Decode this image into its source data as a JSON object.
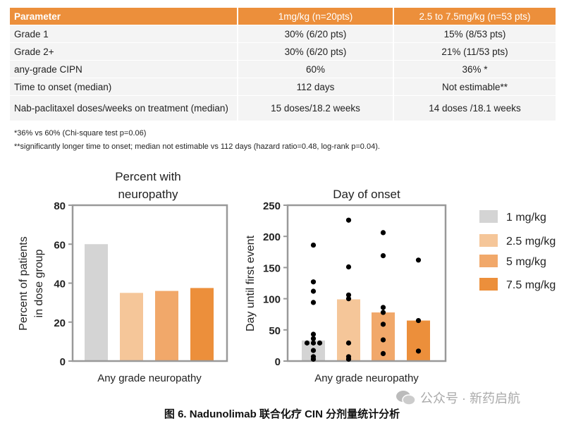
{
  "table": {
    "headers": [
      "Parameter",
      "1mg/kg (n=20pts)",
      "2.5 to 7.5mg/kg (n=53 pts)"
    ],
    "rows": [
      [
        "Grade 1",
        "30% (6/20 pts)",
        "15% (8/53 pts)"
      ],
      [
        "Grade 2+",
        "30% (6/20 pts)",
        "21% (11/53 pts)"
      ],
      [
        "any-grade CIPN",
        "60%",
        "36% *"
      ],
      [
        "Time to onset (median)",
        "112 days",
        "Not estimable**"
      ],
      [
        "Nab-paclitaxel doses/weeks on treatment (median)",
        "15 doses/18.2 weeks",
        "14 doses /18.1 weeks"
      ]
    ],
    "header_color": "#ec8f3b"
  },
  "footnotes": [
    "*36% vs 60% (Chi-square test p=0.06)",
    "**significantly longer time to onset; median not estimable vs 112 days (hazard ratio=0.48, log-rank p=0.04)."
  ],
  "chart_data": [
    {
      "type": "bar",
      "title": "Percent with neuropathy",
      "title_lines": [
        "Percent with",
        "neuropathy"
      ],
      "xlabel": "Any grade neuropathy",
      "ylabel_lines": [
        "Percent of patients",
        "in dose group"
      ],
      "ylim": [
        0,
        80
      ],
      "yticks": [
        "0",
        "20",
        "40",
        "60",
        "80"
      ],
      "categories": [
        "1 mg/kg",
        "2.5 mg/kg",
        "5 mg/kg",
        "7.5 mg/kg"
      ],
      "values": [
        60,
        35,
        36,
        37.5
      ]
    },
    {
      "type": "bar+scatter",
      "title": "Day of onset",
      "xlabel": "Any grade neuropathy",
      "ylabel": "Day until first event",
      "ylim": [
        0,
        250
      ],
      "yticks": [
        "0",
        "50",
        "100",
        "150",
        "200",
        "250"
      ],
      "categories": [
        "1 mg/kg",
        "2.5 mg/kg",
        "5 mg/kg",
        "7.5 mg/kg"
      ],
      "values": [
        33,
        99,
        78,
        65
      ],
      "points": [
        [
          186,
          127,
          112,
          94,
          43,
          36,
          29,
          29,
          29,
          17,
          7,
          3
        ],
        [
          226,
          151,
          106,
          100,
          29,
          7,
          3
        ],
        [
          206,
          169,
          86,
          78,
          59,
          34,
          12
        ],
        [
          162,
          65,
          16
        ]
      ]
    }
  ],
  "legend": [
    {
      "label": "1 mg/kg",
      "color": "#d4d4d4"
    },
    {
      "label": "2.5 mg/kg",
      "color": "#f5c699"
    },
    {
      "label": "5 mg/kg",
      "color": "#f1a86a"
    },
    {
      "label": "7.5 mg/kg",
      "color": "#ec8f3b"
    }
  ],
  "watermark": "公众号 · 新药启航",
  "caption": "图 6. Nadunolimab 联合化疗 CIN 分剂量统计分析"
}
